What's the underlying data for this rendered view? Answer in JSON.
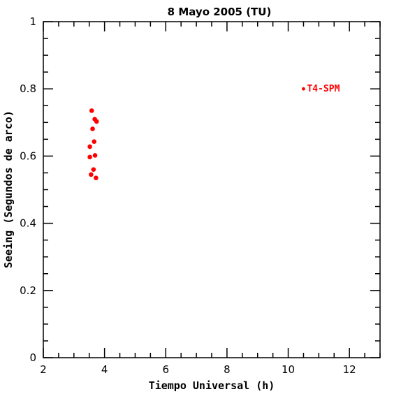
{
  "chart_data": {
    "type": "scatter",
    "title": "8 Mayo 2005 (TU)",
    "xlabel": "Tiempo Universal (h)",
    "ylabel": "Seeing (Segundos de arco)",
    "xlim": [
      2,
      13
    ],
    "ylim": [
      0,
      1
    ],
    "x_ticks": [
      2,
      4,
      6,
      8,
      10,
      12
    ],
    "y_ticks": [
      0,
      0.2,
      0.4,
      0.6,
      0.8,
      1
    ],
    "x_tick_labels": [
      "2",
      "4",
      "6",
      "8",
      "10",
      "12"
    ],
    "y_tick_labels": [
      "0",
      "0.2",
      "0.4",
      "0.6",
      "0.8",
      "1"
    ],
    "grid": false,
    "legend_position": "top-right",
    "series": [
      {
        "name": "T4-SPM",
        "color": "#ff0000",
        "points": [
          {
            "x": 3.58,
            "y": 0.735
          },
          {
            "x": 3.68,
            "y": 0.71
          },
          {
            "x": 3.74,
            "y": 0.703
          },
          {
            "x": 3.61,
            "y": 0.681
          },
          {
            "x": 3.66,
            "y": 0.643
          },
          {
            "x": 3.52,
            "y": 0.628
          },
          {
            "x": 3.69,
            "y": 0.602
          },
          {
            "x": 3.52,
            "y": 0.597
          },
          {
            "x": 3.64,
            "y": 0.56
          },
          {
            "x": 3.56,
            "y": 0.545
          },
          {
            "x": 3.72,
            "y": 0.535
          }
        ]
      }
    ],
    "legend_marker": {
      "x": 10.5,
      "y": 0.8
    }
  }
}
